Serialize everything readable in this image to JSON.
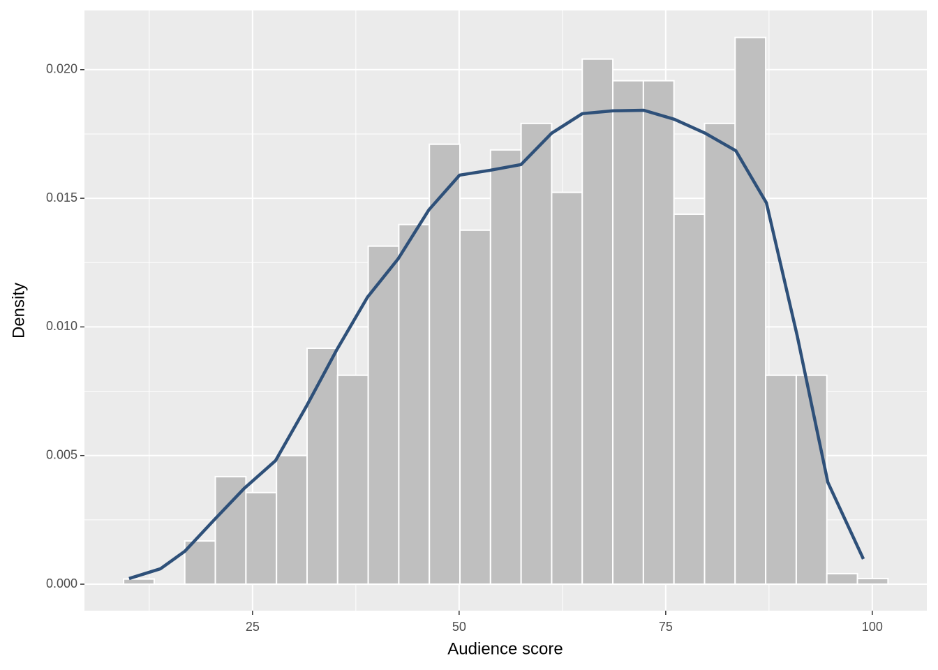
{
  "chart_data": {
    "type": "histogram",
    "x_label": "Audience score",
    "y_label": "Density",
    "bins": [
      9.4,
      13.1,
      16.8,
      20.5,
      24.2,
      27.9,
      31.6,
      35.3,
      39.0,
      42.7,
      46.4,
      50.1,
      53.8,
      57.5,
      61.2,
      64.9,
      68.6,
      72.3,
      76.0,
      79.7,
      83.4,
      87.1,
      90.8,
      94.5,
      98.2,
      101.9
    ],
    "values": [
      0.0002,
      0,
      0.00168,
      0.00418,
      0.00356,
      0.005,
      0.00917,
      0.00812,
      0.01314,
      0.01398,
      0.0171,
      0.01376,
      0.01688,
      0.01791,
      0.01523,
      0.02041,
      0.01957,
      0.01957,
      0.01438,
      0.01791,
      0.02125,
      0.00812,
      0.00812,
      0.00041,
      0.00022
    ],
    "color": "#bfbfbf",
    "density": {
      "color": "#2e5079",
      "x": [
        10.06,
        13.86,
        16.81,
        20.36,
        23.98,
        27.78,
        31.58,
        35.21,
        38.92,
        42.63,
        46.34,
        50.06,
        53.77,
        57.49,
        61.2,
        64.91,
        68.63,
        72.34,
        76.05,
        79.77,
        83.48,
        87.19,
        90.91,
        94.62,
        98.92
      ],
      "values": [
        0.00022,
        0.0006,
        0.00128,
        0.0025,
        0.00372,
        0.0048,
        0.00695,
        0.00912,
        0.01116,
        0.01265,
        0.01455,
        0.0159,
        0.01609,
        0.01631,
        0.01753,
        0.01829,
        0.0184,
        0.01842,
        0.01807,
        0.01753,
        0.01685,
        0.01482,
        0.00966,
        0.00396,
        0.00098
      ]
    },
    "xlim": [
      4.66,
      106.6
    ],
    "ylim": [
      -0.00103,
      0.0223
    ],
    "xticks": [
      25,
      50,
      75,
      100
    ],
    "xminor": [
      12.5,
      37.5,
      62.5,
      87.5
    ],
    "yticks": [
      {
        "value": 0,
        "label": "0.000"
      },
      {
        "value": 0.005,
        "label": "0.005"
      },
      {
        "value": 0.01,
        "label": "0.010"
      },
      {
        "value": 0.015,
        "label": "0.015"
      },
      {
        "value": 0.02,
        "label": "0.020"
      }
    ],
    "yminor": [
      0.0025,
      0.0075,
      0.0125,
      0.0175
    ],
    "grid": true
  }
}
